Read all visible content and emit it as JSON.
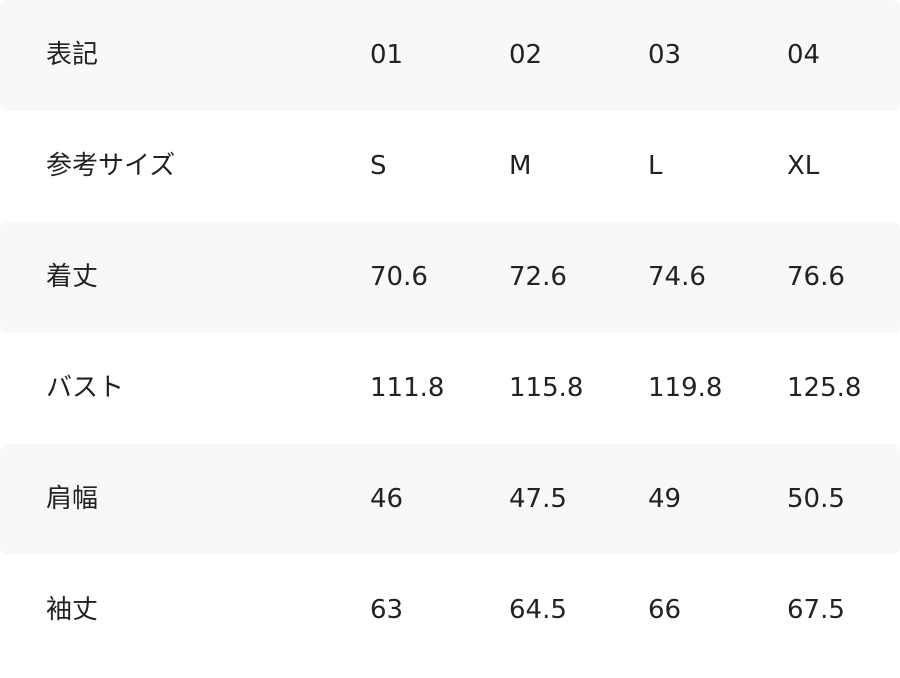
{
  "rows": [
    {
      "label": "表記",
      "values": [
        "01",
        "02",
        "03",
        "04"
      ]
    },
    {
      "label": "参考サイズ",
      "values": [
        "S",
        "M",
        "L",
        "XL"
      ]
    },
    {
      "label": "着丈",
      "values": [
        "70.6",
        "72.6",
        "74.6",
        "76.6"
      ]
    },
    {
      "label": "バスト",
      "values": [
        "111.8",
        "115.8",
        "119.8",
        "125.8"
      ]
    },
    {
      "label": "肩幅",
      "values": [
        "46",
        "47.5",
        "49",
        "50.5"
      ]
    },
    {
      "label": "袖丈",
      "values": [
        "63",
        "64.5",
        "66",
        "67.5"
      ]
    }
  ],
  "colors": {
    "shaded_row": "#f8f8f8",
    "text": "#222222"
  }
}
